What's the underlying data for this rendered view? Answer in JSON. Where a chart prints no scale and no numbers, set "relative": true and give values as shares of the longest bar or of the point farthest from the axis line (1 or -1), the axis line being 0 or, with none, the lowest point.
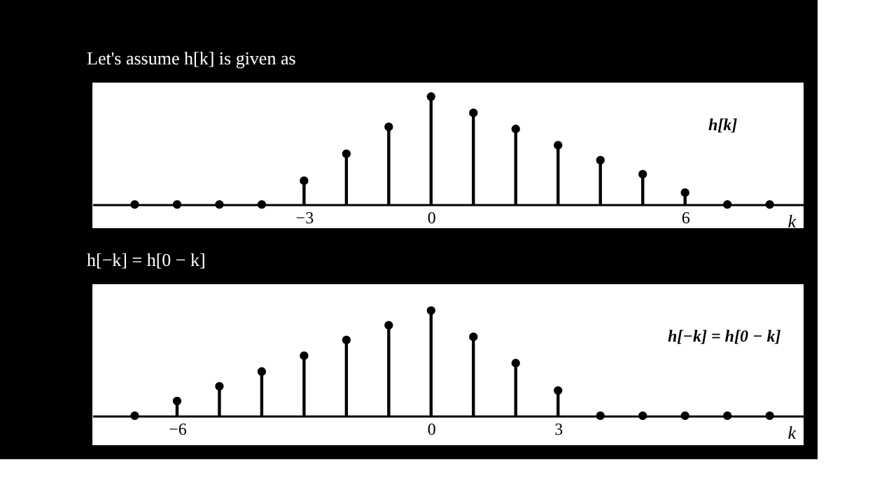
{
  "chart_data": [
    {
      "type": "lollipop",
      "title": "Let's assume h[k] is given as",
      "xlabel": "k",
      "annotations": [
        "h[k]"
      ],
      "relative": true,
      "marker": "circle",
      "tick_labels": "x",
      "xlim": [
        -8,
        8.8
      ],
      "xticks": [
        -3,
        0,
        6
      ],
      "x": [
        -7,
        -6,
        -5,
        -4,
        -3,
        -2,
        -1,
        0,
        1,
        2,
        3,
        4,
        5,
        6,
        7,
        8
      ],
      "series": [
        {
          "color": "#000000",
          "values": [
            0,
            0,
            0,
            0,
            0.22,
            0.47,
            0.72,
            1,
            0.85,
            0.7,
            0.55,
            0.41,
            0.28,
            0.11,
            0,
            0
          ]
        }
      ]
    },
    {
      "type": "lollipop",
      "title": "h[−k] = h[0 − k]",
      "xlabel": "k",
      "annotations": [
        "h[−k] = h[0 − k]"
      ],
      "relative": true,
      "marker": "circle",
      "tick_labels": "x",
      "xlim": [
        -8,
        8.8
      ],
      "xticks": [
        -6,
        0,
        3
      ],
      "x": [
        -7,
        -6,
        -5,
        -4,
        -3,
        -2,
        -1,
        0,
        1,
        2,
        3,
        4,
        5,
        6,
        7,
        8
      ],
      "series": [
        {
          "color": "#000000",
          "values": [
            0,
            0.14,
            0.28,
            0.42,
            0.57,
            0.72,
            0.86,
            1,
            0.75,
            0.5,
            0.24,
            0,
            0,
            0,
            0,
            0
          ]
        }
      ]
    }
  ]
}
